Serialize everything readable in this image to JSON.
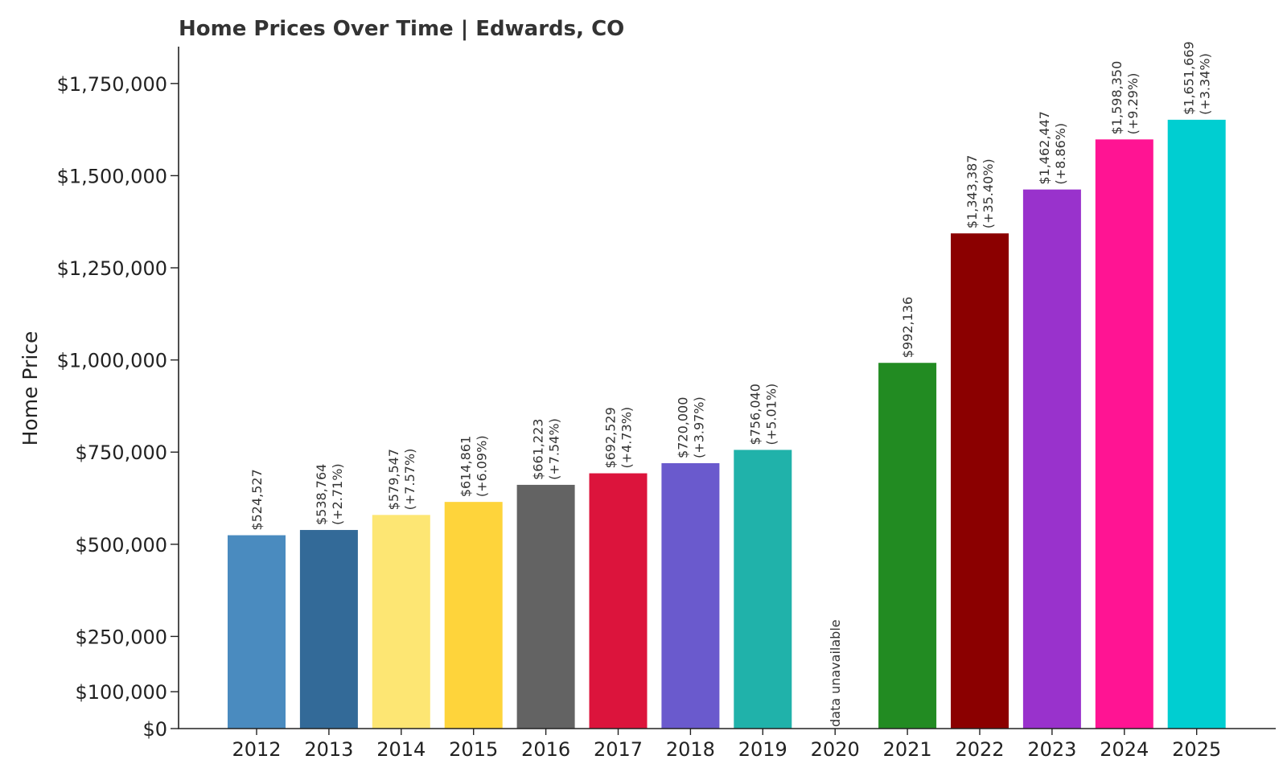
{
  "chart_data": {
    "type": "bar",
    "title": "Home Prices Over Time | Edwards, CO",
    "xlabel": "",
    "ylabel": "Home Price",
    "ylim": [
      0,
      1850000
    ],
    "yticks": [
      0,
      100000,
      250000,
      500000,
      750000,
      1000000,
      1250000,
      1500000,
      1750000
    ],
    "ytick_labels": [
      "$0",
      "$100,000",
      "$250,000",
      "$500,000",
      "$750,000",
      "$1,000,000",
      "$1,250,000",
      "$1,500,000",
      "$1,750,000"
    ],
    "grid": false,
    "categories": [
      "2012",
      "2013",
      "2014",
      "2015",
      "2016",
      "2017",
      "2018",
      "2019",
      "2020",
      "2021",
      "2022",
      "2023",
      "2024",
      "2025"
    ],
    "values": [
      524527,
      538764,
      579547,
      614861,
      661223,
      692529,
      720000,
      756040,
      null,
      992136,
      1343387,
      1462447,
      1598350,
      1651669
    ],
    "value_labels": [
      "$524,527",
      "$538,764",
      "$579,547",
      "$614,861",
      "$661,223",
      "$692,529",
      "$720,000",
      "$756,040",
      "",
      "$992,136",
      "$1,343,387",
      "$1,462,447",
      "$1,598,350",
      "$1,651,669"
    ],
    "change_labels": [
      "",
      "(+2.71%)",
      "(+7.57%)",
      "(+6.09%)",
      "(+7.54%)",
      "(+4.73%)",
      "(+3.97%)",
      "(+5.01%)",
      "",
      "",
      "(+35.40%)",
      "(+8.86%)",
      "(+9.29%)",
      "(+3.34%)"
    ],
    "missing_label": "data unavailable",
    "colors": [
      "#4a8bbf",
      "#336a98",
      "#fde673",
      "#fed43b",
      "#636363",
      "#dc143c",
      "#6a5acd",
      "#20b2aa",
      "#ffffff",
      "#228b22",
      "#8b0000",
      "#9932cc",
      "#ff1493",
      "#00ced1"
    ]
  }
}
